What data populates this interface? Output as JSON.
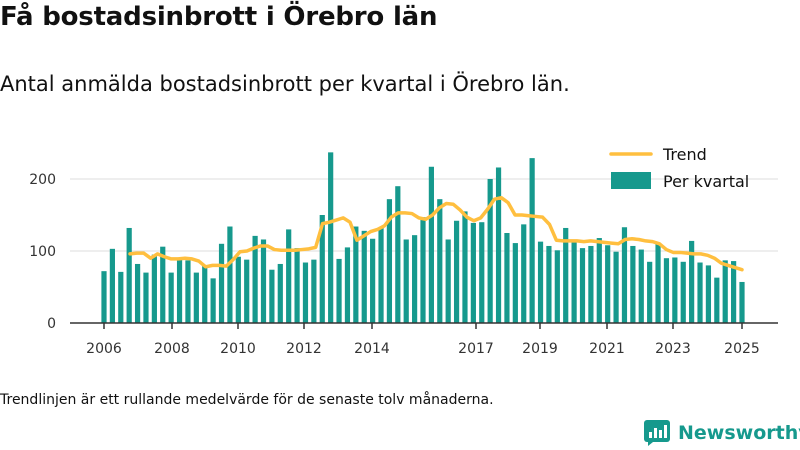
{
  "title": "Få bostadsinbrott i Örebro län",
  "subtitle": "Antal anmälda bostadsinbrott per kvartal i Örebro län.",
  "footnote": "Trendlinjen är ett rullande medelvärde för de senaste tolv månaderna.",
  "brand": "Newsworthy",
  "colors": {
    "bar": "#16998d",
    "trend": "#ffbf3f",
    "grid": "#dddddd",
    "axis": "#333333"
  },
  "chart_data": {
    "type": "bar",
    "x_ticks": [
      "2006",
      "2008",
      "2010",
      "2012",
      "2014",
      "2017",
      "2019",
      "2021",
      "2023",
      "2025"
    ],
    "y_ticks": [
      "0",
      "100",
      "200"
    ],
    "ylim": [
      0,
      250
    ],
    "grid": true,
    "legend_position": "top-right",
    "series": [
      {
        "name": "Per kvartal",
        "kind": "bar",
        "values": [
          72,
          103,
          71,
          132,
          82,
          70,
          95,
          106,
          70,
          91,
          87,
          70,
          80,
          62,
          110,
          134,
          92,
          88,
          121,
          116,
          74,
          82,
          130,
          104,
          84,
          88,
          150,
          237,
          89,
          105,
          134,
          128,
          117,
          132,
          172,
          190,
          116,
          122,
          147,
          217,
          172,
          116,
          142,
          155,
          139,
          140,
          200,
          216,
          125,
          111,
          137,
          229,
          113,
          107,
          101,
          132,
          112,
          104,
          107,
          118,
          108,
          99,
          133,
          107,
          102,
          85,
          111,
          90,
          91,
          85,
          114,
          84,
          80,
          63,
          87,
          86,
          57
        ]
      },
      {
        "name": "Trend",
        "kind": "line",
        "values": [
          96,
          97,
          97,
          90,
          96,
          92,
          89,
          89,
          90,
          89,
          86,
          78,
          80,
          80,
          79,
          88,
          99,
          100,
          104,
          107,
          107,
          102,
          101,
          101,
          101,
          102,
          103,
          105,
          138,
          140,
          143,
          146,
          140,
          115,
          121,
          127,
          130,
          135,
          147,
          153,
          153,
          152,
          146,
          144,
          150,
          160,
          166,
          165,
          157,
          147,
          142,
          146,
          158,
          172,
          174,
          167,
          150,
          150,
          149,
          148,
          147,
          137,
          115,
          114,
          114,
          114,
          113,
          114,
          113,
          112,
          111,
          110,
          116,
          117,
          116,
          114,
          113,
          110,
          102,
          98,
          98,
          97,
          96,
          96,
          94,
          90,
          83,
          80,
          77,
          74
        ]
      }
    ]
  }
}
